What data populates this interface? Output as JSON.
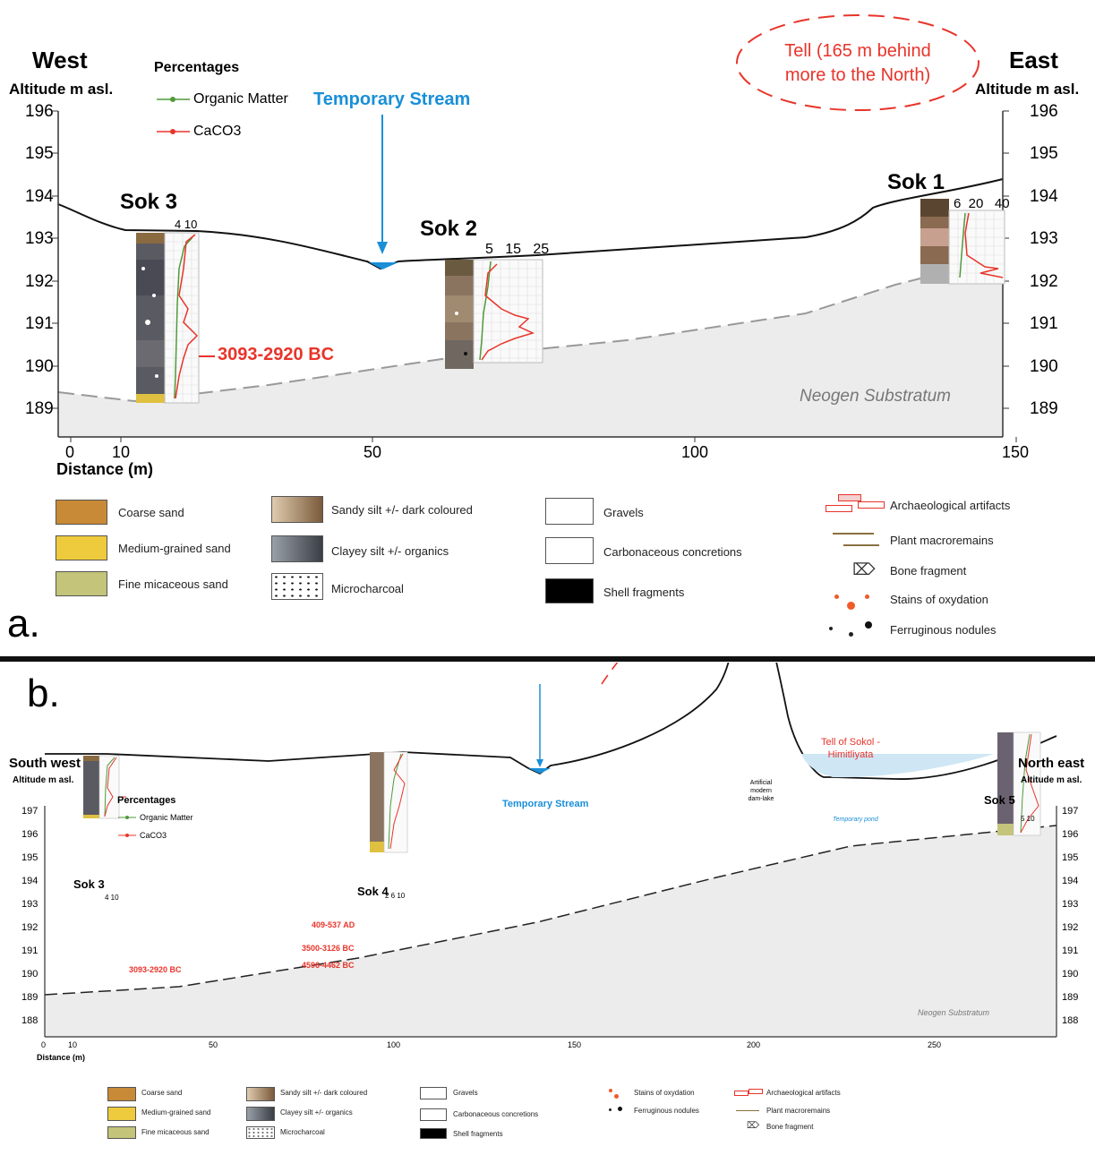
{
  "panel_a": {
    "letter": "a.",
    "west": "West",
    "east": "East",
    "alt_left": "Altitude m asl.",
    "alt_right": "Altitude m asl.",
    "percentages": "Percentages",
    "organic": "Organic Matter",
    "caco3": "CaCO3",
    "stream": "Temporary Stream",
    "tell": "Tell (165 m behind more to the North)",
    "sok3": "Sok 3",
    "sok2": "Sok 2",
    "sok1": "Sok 1",
    "sok3_scale": "4 10",
    "sok2_scale": "5   15   25",
    "sok1_scale": "6  20   40",
    "date_sok3": "3093-2920 BC",
    "substratum": "Neogen Substratum",
    "xlabel": "Distance (m)",
    "xticks": [
      "0",
      "10",
      "50",
      "100",
      "150"
    ],
    "yticks": [
      "196",
      "195",
      "194",
      "193",
      "192",
      "191",
      "190",
      "189"
    ]
  },
  "panel_b": {
    "letter": "b.",
    "southwest": "South west",
    "northeast": "North east",
    "alt_left": "Altitude m asl.",
    "alt_right": "Altitude m asl.",
    "percentages": "Percentages",
    "organic": "Organic Matter",
    "caco3": "CaCO3",
    "stream": "Temporary Stream",
    "tell": "Tell of Sokol - Himitliyata",
    "dam": "Artificial modern dam-lake",
    "pond": "Temporary pond",
    "sok3": "Sok 3",
    "sok4": "Sok 4",
    "sok5": "Sok 5",
    "sok3_scale": "4 10",
    "sok4_scale": "2 6 10",
    "sok5_scale": "5 10",
    "date_sok3": "3093-2920 BC",
    "dates_sok4": [
      "409-537 AD",
      "3500-3126 BC",
      "4596-4462 BC"
    ],
    "substratum": "Neogen Substratum",
    "xlabel": "Distance (m)",
    "xticks": [
      "0",
      "10",
      "50",
      "100",
      "150",
      "200",
      "250"
    ],
    "yticks": [
      "197",
      "196",
      "195",
      "194",
      "193",
      "192",
      "191",
      "190",
      "189",
      "188"
    ]
  },
  "legend": {
    "coarse_sand": "Coarse sand",
    "medium_sand": "Medium-grained sand",
    "fine_sand": "Fine micaceous sand",
    "sandy_silt": "Sandy silt +/- dark coloured",
    "clayey_silt": "Clayey silt +/- organics",
    "microcharcoal": "Microcharcoal",
    "gravels": "Gravels",
    "carbonaceous": "Carbonaceous concretions",
    "shell": "Shell fragments",
    "artifacts": "Archaeological artifacts",
    "plant": "Plant macroremains",
    "bone": "Bone fragment",
    "stains": "Stains of oxydation",
    "ferruginous": "Ferruginous nodules"
  },
  "colors": {
    "surface": "#111111",
    "substratum": "#ececec",
    "stream": "#1a8fd8",
    "red": "#e8342a",
    "green": "#4f9a3a",
    "coarse_sand": "#c88a36",
    "medium_sand": "#eecb3c",
    "fine_sand": "#c4c47a"
  }
}
